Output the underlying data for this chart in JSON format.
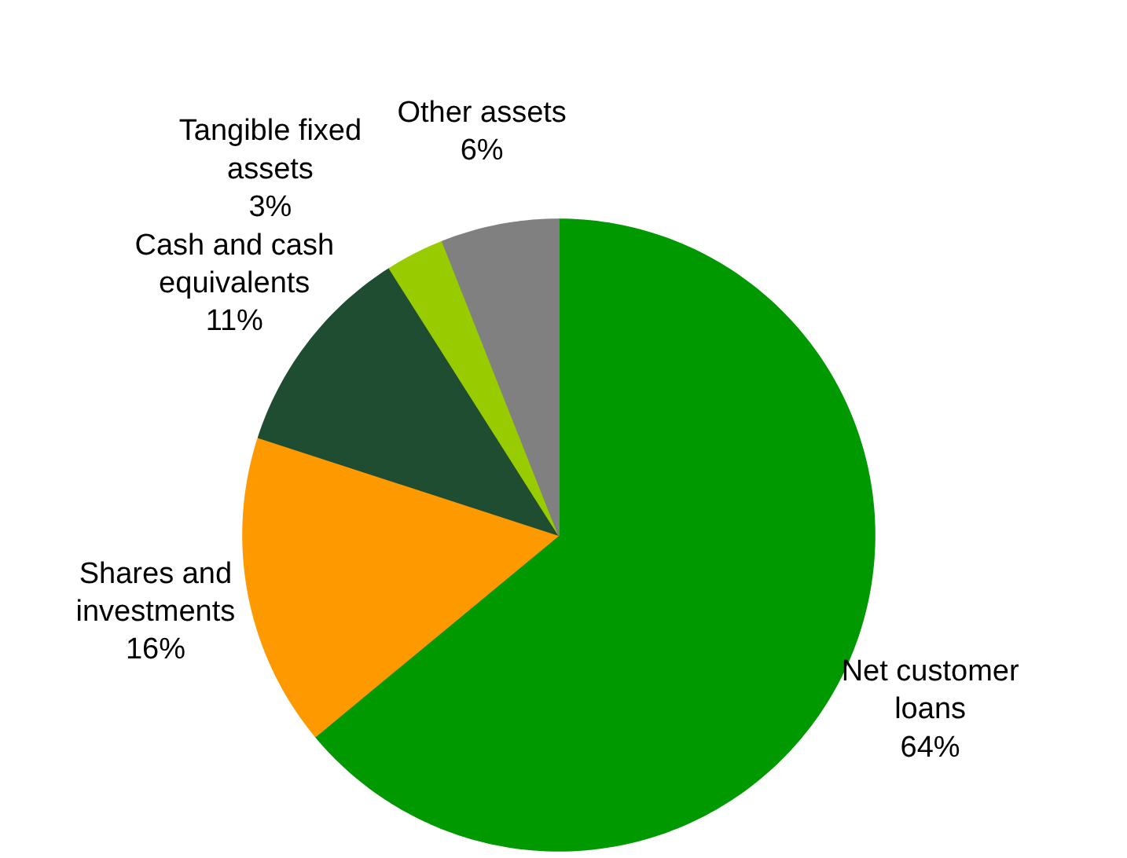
{
  "chart_data": {
    "type": "pie",
    "categories": [
      "Net customer loans",
      "Shares and investments",
      "Cash and cash equivalents",
      "Tangible fixed assets",
      "Other assets"
    ],
    "values": [
      64,
      16,
      11,
      3,
      6
    ],
    "colors": [
      "#009900",
      "#ff9900",
      "#1e4d32",
      "#99cc00",
      "#808080"
    ],
    "value_labels": [
      "64%",
      "16%",
      "11%",
      "3%",
      "6%"
    ]
  }
}
